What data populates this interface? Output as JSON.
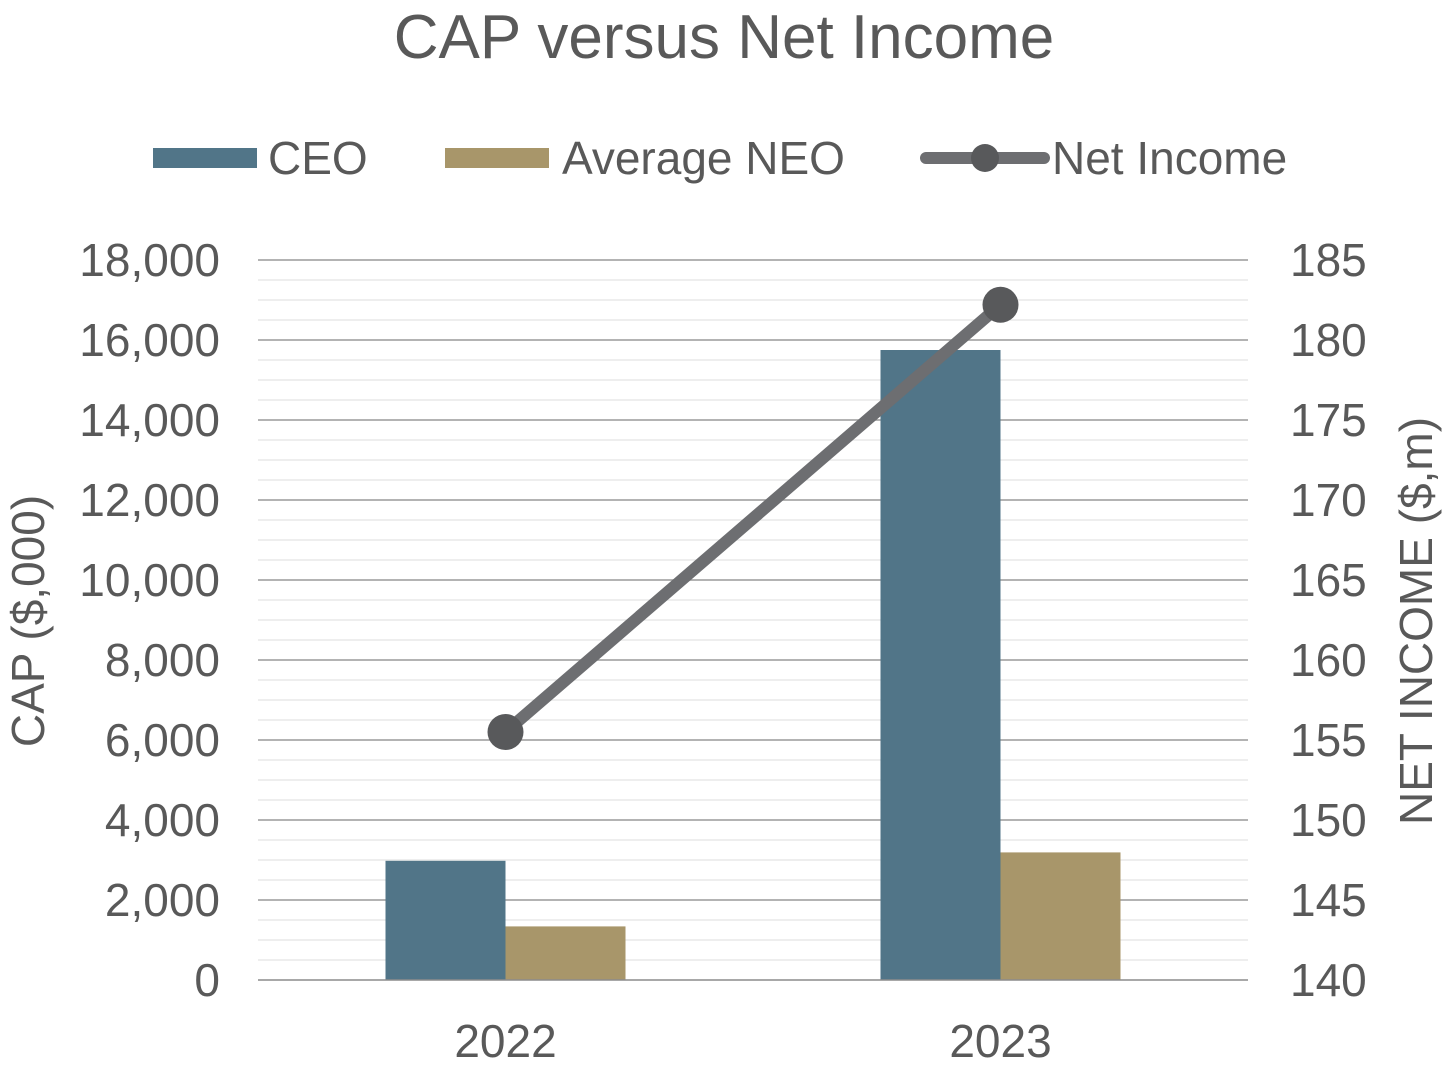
{
  "chart_data": {
    "type": "bar",
    "title": "CAP versus Net Income",
    "categories": [
      "2022",
      "2023"
    ],
    "series": [
      {
        "name": "CEO",
        "type": "bar",
        "axis": "left",
        "color": "#517588",
        "values": [
          2980,
          15750
        ]
      },
      {
        "name": "Average NEO",
        "type": "bar",
        "axis": "left",
        "color": "#A8966A",
        "values": [
          1340,
          3190
        ]
      },
      {
        "name": "Net Income",
        "type": "line",
        "axis": "right",
        "color": "#6D6E71",
        "marker_color": "#58595B",
        "values": [
          155.5,
          182.2
        ]
      }
    ],
    "y_left": {
      "label": "CAP ($,000)",
      "range": [
        0,
        18000
      ],
      "ticks": [
        "0",
        "2,000",
        "4,000",
        "6,000",
        "8,000",
        "10,000",
        "12,000",
        "14,000",
        "16,000",
        "18,000"
      ]
    },
    "y_right": {
      "label": "NET INCOME ($,m)",
      "range": [
        140,
        185
      ],
      "ticks": [
        "140",
        "145",
        "150",
        "155",
        "160",
        "165",
        "170",
        "175",
        "180",
        "185"
      ]
    },
    "legend_position": "top",
    "grid": true
  }
}
